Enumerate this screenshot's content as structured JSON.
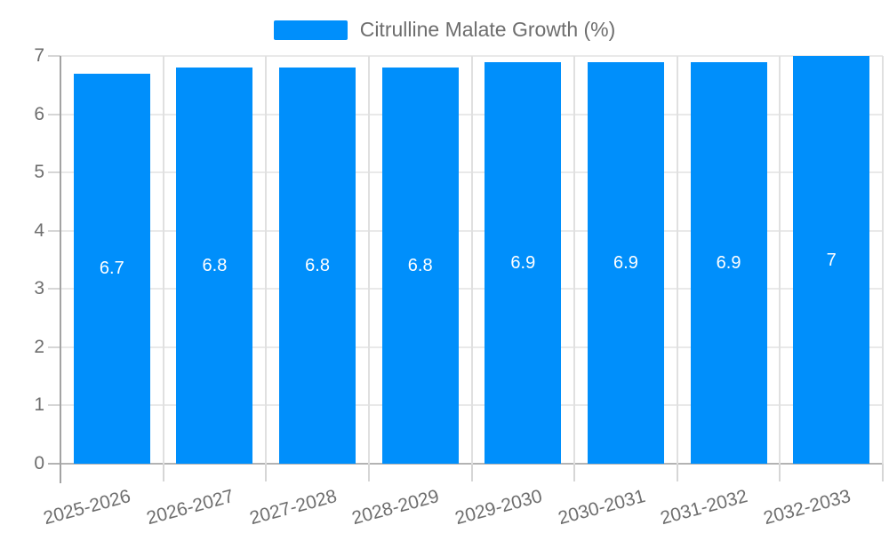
{
  "legend": {
    "label": "Citrulline Malate Growth (%)",
    "swatch_color": "#008FFB"
  },
  "chart_data": {
    "type": "bar",
    "title": "Citrulline Malate Growth (%)",
    "legend_position": "top",
    "categories": [
      "2025-2026",
      "2026-2027",
      "2027-2028",
      "2028-2029",
      "2029-2030",
      "2030-2031",
      "2031-2032",
      "2032-2033"
    ],
    "series": [
      {
        "name": "Citrulline Malate Growth (%)",
        "values": [
          6.7,
          6.8,
          6.8,
          6.8,
          6.9,
          6.9,
          6.9,
          7
        ]
      }
    ],
    "data_labels": [
      "6.7",
      "6.8",
      "6.8",
      "6.8",
      "6.9",
      "6.9",
      "6.9",
      "7"
    ],
    "ylabel": "",
    "xlabel": "",
    "ylim": [
      0,
      7
    ],
    "yticks": [
      "0",
      "1",
      "2",
      "3",
      "4",
      "5",
      "6",
      "7"
    ],
    "grid": true,
    "colors": {
      "bar": "#008FFB",
      "bar_label_text": "#ffffff",
      "axis_text": "#6e6e6e",
      "grid_line": "#e9e9e9",
      "separator_line": "#e0e0e0",
      "tick_line": "#d6d6d6",
      "x_axis_line": "#b3b3b3",
      "y_axis_line": "#a3a3a3",
      "background": "#ffffff"
    }
  }
}
